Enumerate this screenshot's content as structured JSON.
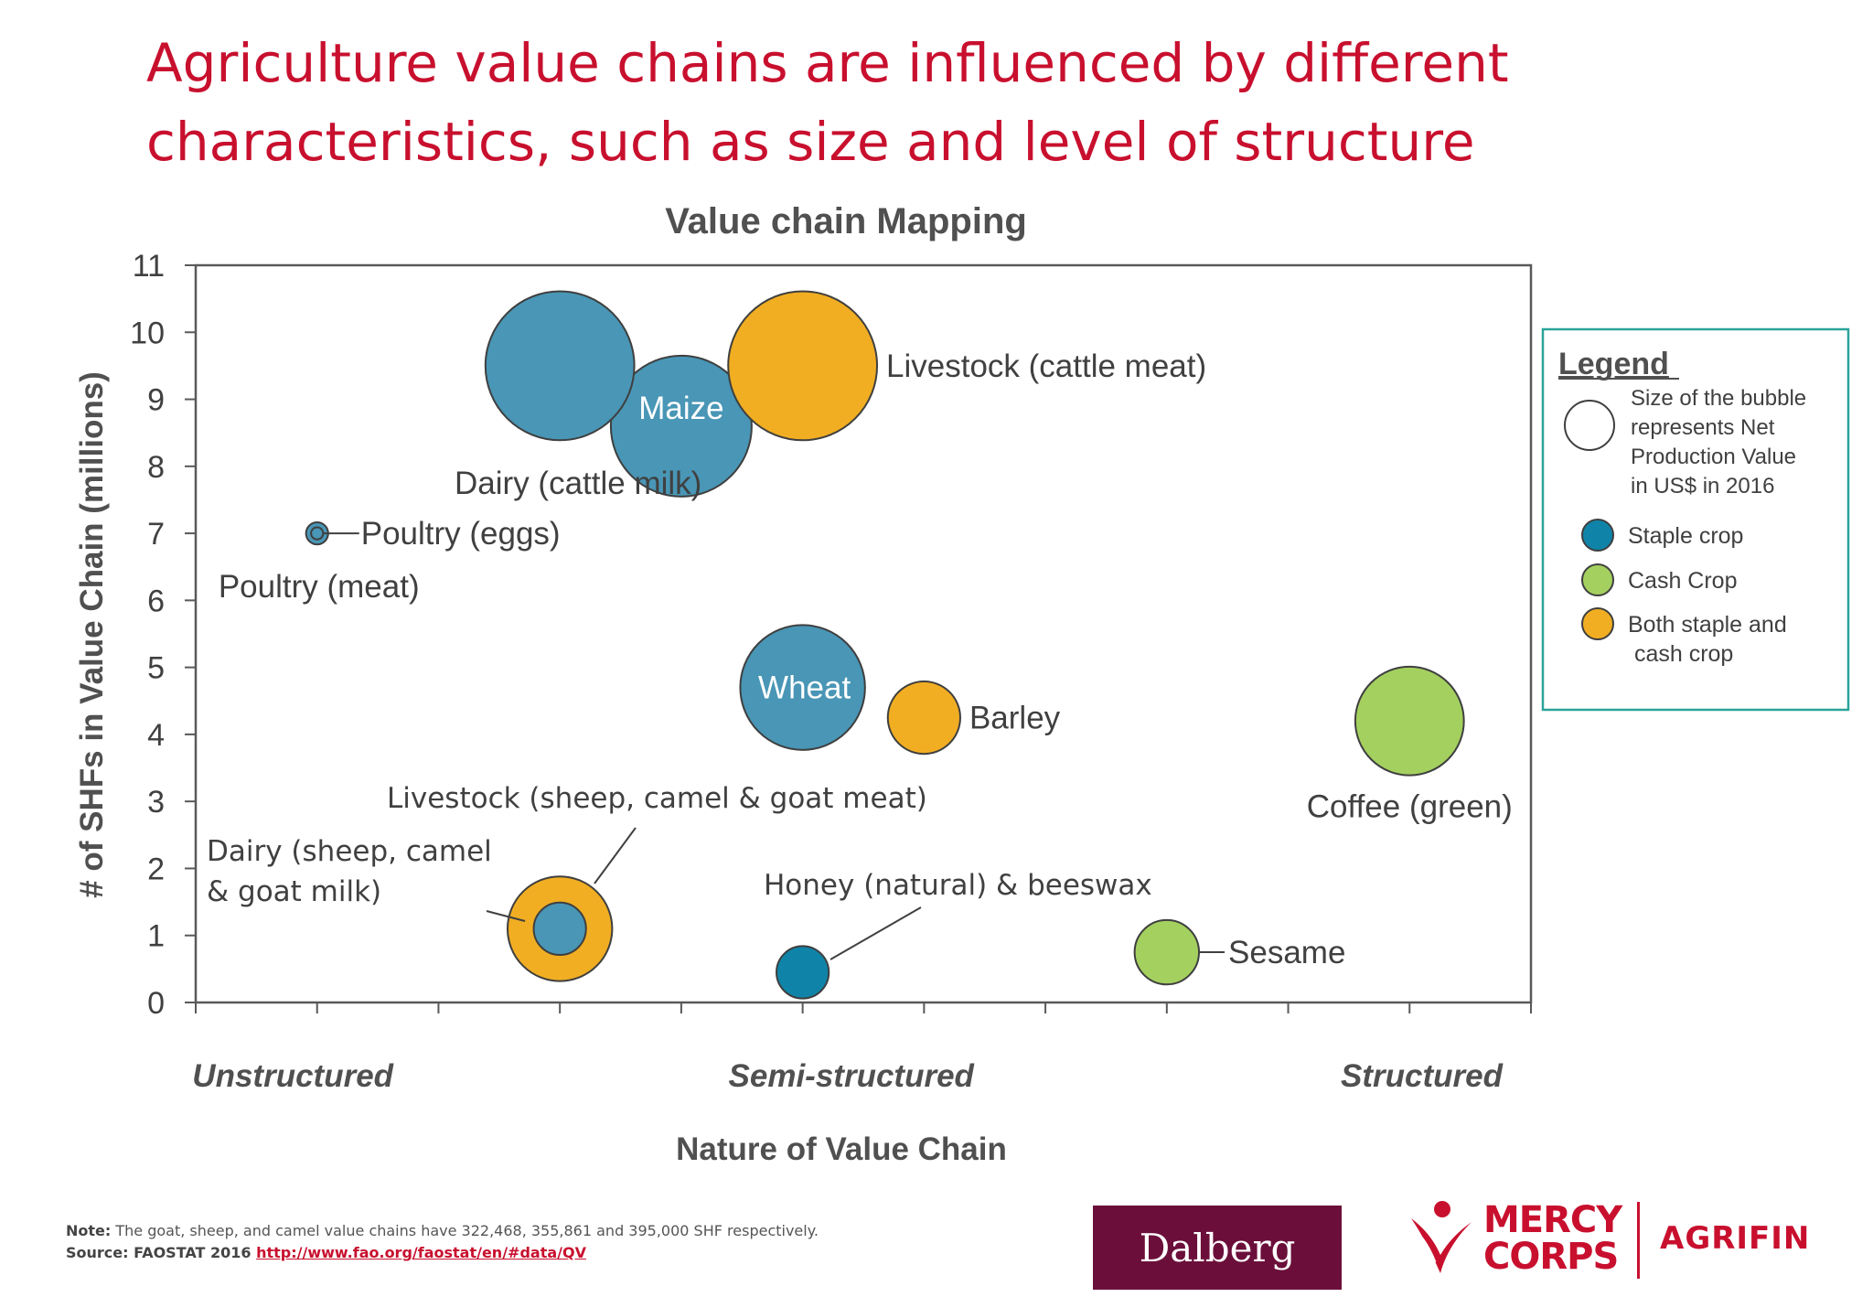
{
  "slide": {
    "title_line1": "Agriculture value chains are influenced by different",
    "title_line2": "characteristics, such as size and level of structure"
  },
  "chart_data": {
    "type": "scatter",
    "subtype": "bubble",
    "title": "Value chain Mapping",
    "xlabel": "Nature of Value Chain",
    "ylabel": "# of SHFs in Value Chain (millions)",
    "x_category_labels": [
      "Unstructured",
      "Semi-structured",
      "Structured"
    ],
    "x_category_positions": [
      0.8,
      5.4,
      10.1
    ],
    "xlim": [
      0,
      11
    ],
    "ylim": [
      0,
      11
    ],
    "yticks": [
      0,
      1,
      2,
      3,
      4,
      5,
      6,
      7,
      8,
      9,
      10,
      11
    ],
    "grid": false,
    "legend": {
      "title": "Legend",
      "size_note": "Size of the bubble represents Net Production Value in US$ in 2016",
      "size_note_lines": [
        "Size of the bubble",
        "represents Net",
        "Production Value",
        "in US$ in 2016"
      ],
      "entries": [
        {
          "key": "staple",
          "label": "Staple crop",
          "color": "#0f84a8"
        },
        {
          "key": "cash",
          "label": "Cash Crop",
          "color": "#a4d05f"
        },
        {
          "key": "both",
          "label": "Both staple and cash crop",
          "label_lines": [
            "Both staple and",
            " cash crop"
          ],
          "color": "#f1ae22"
        }
      ],
      "placement": "right"
    },
    "colors": {
      "staple": "#4996b6",
      "staple_dark": "#0f84a8",
      "cash": "#a4d05f",
      "both": "#f1ae22",
      "outline": "#3f3f3f"
    },
    "series": [
      {
        "label": "Maize",
        "category": "staple",
        "x": 4,
        "y": 8.6,
        "size": 3.5
      },
      {
        "label": "Dairy (cattle milk)",
        "category": "staple",
        "x": 3,
        "y": 9.5,
        "size": 3.7
      },
      {
        "label": "Livestock (cattle meat)",
        "category": "both",
        "x": 5,
        "y": 9.5,
        "size": 3.7
      },
      {
        "label": "Poultry (meat)",
        "category": "staple",
        "x": 1,
        "y": 7.0,
        "size": 0.55
      },
      {
        "label": "Poultry (eggs)",
        "category": "staple",
        "x": 1,
        "y": 7.0,
        "size": 0.3
      },
      {
        "label": "Wheat",
        "category": "staple",
        "x": 5,
        "y": 4.7,
        "size": 3.1
      },
      {
        "label": "Barley",
        "category": "both",
        "x": 6,
        "y": 4.25,
        "size": 1.8
      },
      {
        "label": "Coffee (green)",
        "category": "cash",
        "x": 10,
        "y": 4.2,
        "size": 2.7
      },
      {
        "label": "Livestock (sheep, camel & goat meat)",
        "category": "both",
        "x": 3,
        "y": 1.1,
        "size": 2.6
      },
      {
        "label": "Dairy (sheep, camel & goat milk)",
        "category": "staple",
        "x": 3,
        "y": 1.1,
        "size": 1.3
      },
      {
        "label": "Honey (natural) & beeswax",
        "category": "staple_dark",
        "x": 5,
        "y": 0.45,
        "size": 1.3
      },
      {
        "label": "Sesame",
        "category": "cash",
        "x": 8,
        "y": 0.75,
        "size": 1.6
      }
    ]
  },
  "footer": {
    "note_label": "Note:",
    "note_text": " The goat, sheep, and camel value chains have 322,468, 355,861 and 395,000 SHF respectively.",
    "source_label": "Source: FAOSTAT 2016 ",
    "source_link": "http://www.fao.org/faostat/en/#data/QV"
  },
  "logos": {
    "dalberg": "Dalberg",
    "mercy_line1": "MERCY",
    "mercy_line2": "CORPS",
    "agrifin": "AGRIFIN"
  }
}
